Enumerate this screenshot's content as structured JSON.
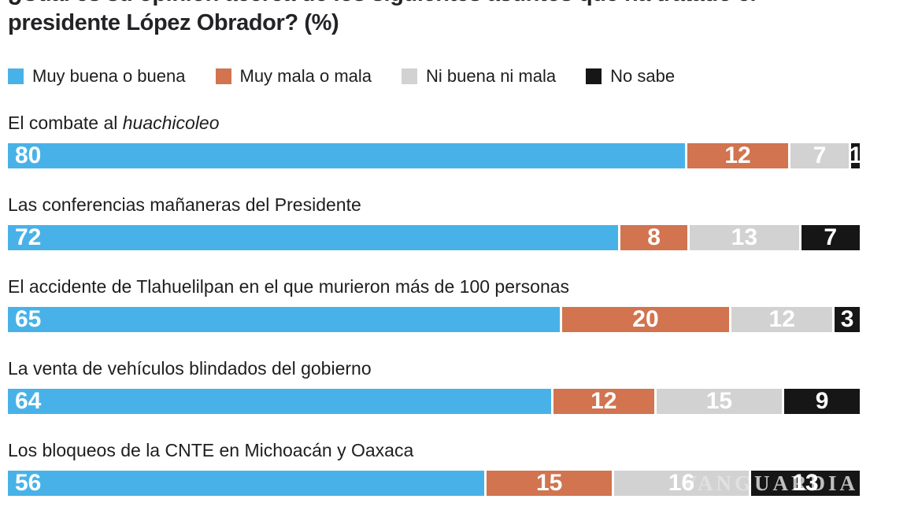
{
  "title": {
    "line1": "¿Cuál es su opinión acerca de los siguientes asuntos que ha tratado el",
    "line2": "presidente López Obrador? (%)"
  },
  "watermark": "VANGUARDIA",
  "colors": {
    "muy_buena": "#48B2E8",
    "muy_mala": "#D1744F",
    "ni_buena_ni_mala": "#D2D2D2",
    "no_sabe": "#161616"
  },
  "chart_data": {
    "type": "bar",
    "stacked": true,
    "orientation": "horizontal",
    "unit": "%",
    "xlim": [
      0,
      100
    ],
    "title": "¿Cuál es su opinión acerca de los siguientes asuntos que ha tratado el presidente López Obrador? (%)",
    "legend_position": "top",
    "legend": [
      {
        "label": "Muy buena o buena",
        "color": "#48B2E8"
      },
      {
        "label": "Muy mala o mala",
        "color": "#D1744F"
      },
      {
        "label": "Ni buena ni mala",
        "color": "#D2D2D2"
      },
      {
        "label": "No sabe",
        "color": "#161616"
      }
    ],
    "categories": [
      "El combate al huachicoleo",
      "Las conferencias mañaneras del Presidente",
      "El accidente de Tlahuelilpan en el que murieron más de 100 personas",
      "La venta de vehículos blindados del gobierno",
      "Los bloqueos de la CNTE en Michoacán y Oaxaca"
    ],
    "rows": [
      {
        "label": "El combate al ",
        "label_italic": "huachicoleo",
        "values": [
          80,
          12,
          7,
          1
        ]
      },
      {
        "label": "Las conferencias mañaneras del Presidente",
        "label_italic": "",
        "values": [
          72,
          8,
          13,
          7
        ]
      },
      {
        "label": "El accidente de Tlahuelilpan en el que murieron más de 100 personas",
        "label_italic": "",
        "values": [
          65,
          20,
          12,
          3
        ]
      },
      {
        "label": "La venta de vehículos blindados del gobierno",
        "label_italic": "",
        "values": [
          64,
          12,
          15,
          9
        ]
      },
      {
        "label": "Los bloqueos de la CNTE en Michoacán y Oaxaca",
        "label_italic": "",
        "values": [
          56,
          15,
          16,
          13
        ]
      }
    ]
  }
}
